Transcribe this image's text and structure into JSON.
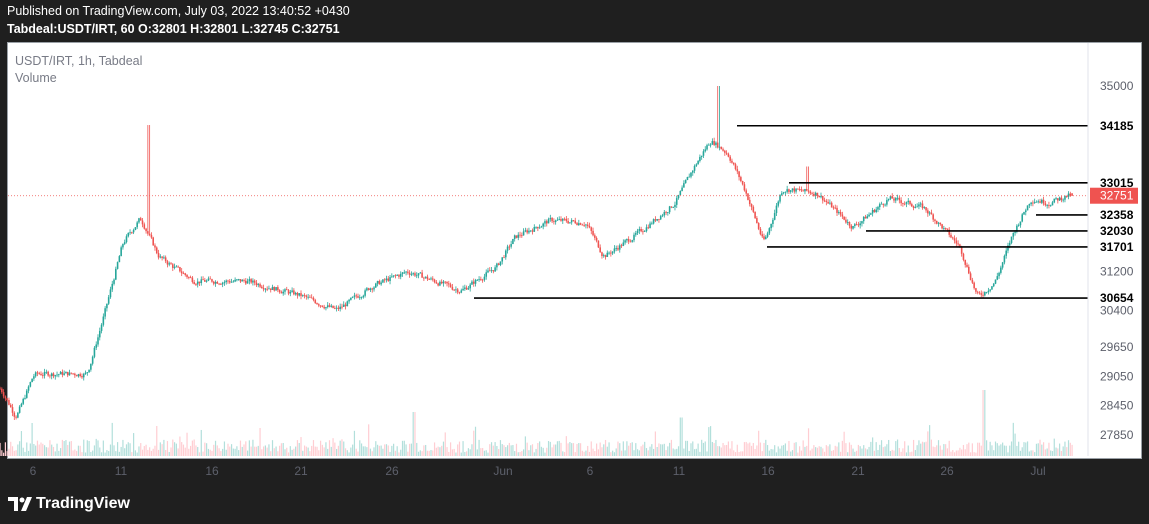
{
  "header": {
    "published": "Published on TradingView.com, July 03, 2022 13:40:52 +0430",
    "symbol_line": "Tabdeal:USDT/IRT, 60 O:32801 H:32801 L:32745 C:32751"
  },
  "legend": {
    "symbol": "USDT/IRT, 1h, Tabdeal",
    "volume": "Volume"
  },
  "footer": {
    "brand": "TradingView"
  },
  "colors": {
    "up": "#26a69a",
    "down": "#ef5350",
    "vol_up": "#b2dfdb",
    "vol_down": "#ffcdd2",
    "level": "#000000",
    "price_badge": "#ef5350",
    "background": "#ffffff"
  },
  "chart_data": {
    "type": "candlestick",
    "title": "USDT/IRT, 1h, Tabdeal",
    "x_ticks": [
      "6",
      "11",
      "16",
      "21",
      "26",
      "Jun",
      "6",
      "11",
      "16",
      "21",
      "26",
      "Jul"
    ],
    "y_ticks": [
      35000,
      31200,
      30400,
      29650,
      29050,
      28450,
      27850
    ],
    "ylim": [
      27600,
      35400
    ],
    "last_price": 32751,
    "ohlc_last": {
      "open": 32801,
      "high": 32801,
      "low": 32745,
      "close": 32751
    },
    "horizontal_levels": [
      34185,
      33015,
      32358,
      32030,
      31701,
      30654
    ],
    "price_path_anchors": [
      {
        "day": "May 4",
        "price": 28900
      },
      {
        "day": "May 5",
        "price": 28200
      },
      {
        "day": "May 6",
        "price": 29100
      },
      {
        "day": "May 9",
        "price": 29100
      },
      {
        "day": "May 10",
        "price": 30400
      },
      {
        "day": "May 11",
        "price": 31800
      },
      {
        "day": "May 12",
        "price": 32300
      },
      {
        "day": "May 13",
        "price": 31500
      },
      {
        "day": "May 15",
        "price": 31000
      },
      {
        "day": "May 18",
        "price": 31000
      },
      {
        "day": "May 21",
        "price": 30700
      },
      {
        "day": "May 23",
        "price": 30400
      },
      {
        "day": "May 25",
        "price": 30900
      },
      {
        "day": "May 27",
        "price": 31200
      },
      {
        "day": "May 30",
        "price": 30800
      },
      {
        "day": "Jun 1",
        "price": 31300
      },
      {
        "day": "Jun 2",
        "price": 31900
      },
      {
        "day": "Jun 4",
        "price": 32250
      },
      {
        "day": "Jun 6",
        "price": 32200
      },
      {
        "day": "Jun 7",
        "price": 31500
      },
      {
        "day": "Jun 9",
        "price": 32000
      },
      {
        "day": "Jun 11",
        "price": 32600
      },
      {
        "day": "Jun 12",
        "price": 33300
      },
      {
        "day": "Jun 13",
        "price": 33900
      },
      {
        "day": "Jun 14",
        "price": 33600
      },
      {
        "day": "Jun 15",
        "price": 32800
      },
      {
        "day": "Jun 16",
        "price": 31750
      },
      {
        "day": "Jun 17",
        "price": 32900
      },
      {
        "day": "Jun 19",
        "price": 32800
      },
      {
        "day": "Jun 21",
        "price": 32100
      },
      {
        "day": "Jun 23",
        "price": 32700
      },
      {
        "day": "Jun 25",
        "price": 32500
      },
      {
        "day": "Jun 27",
        "price": 31700
      },
      {
        "day": "Jun 28",
        "price": 30650
      },
      {
        "day": "Jun 29",
        "price": 31000
      },
      {
        "day": "Jun 30",
        "price": 32000
      },
      {
        "day": "Jul 1",
        "price": 32700
      },
      {
        "day": "Jul 2",
        "price": 32600
      },
      {
        "day": "Jul 3",
        "price": 32751
      }
    ],
    "price_spikes": [
      {
        "day": "May 12",
        "price": 34200
      },
      {
        "day": "Jun 13",
        "price": 35000
      },
      {
        "day": "Jun 18",
        "price": 33350
      },
      {
        "day": "Jul 3",
        "price": 33150
      }
    ],
    "volume_spikes": [
      {
        "day": "May 27",
        "relative": 0.4
      },
      {
        "day": "Jun 11",
        "relative": 0.35
      },
      {
        "day": "Jun 28",
        "relative": 0.6
      }
    ]
  }
}
